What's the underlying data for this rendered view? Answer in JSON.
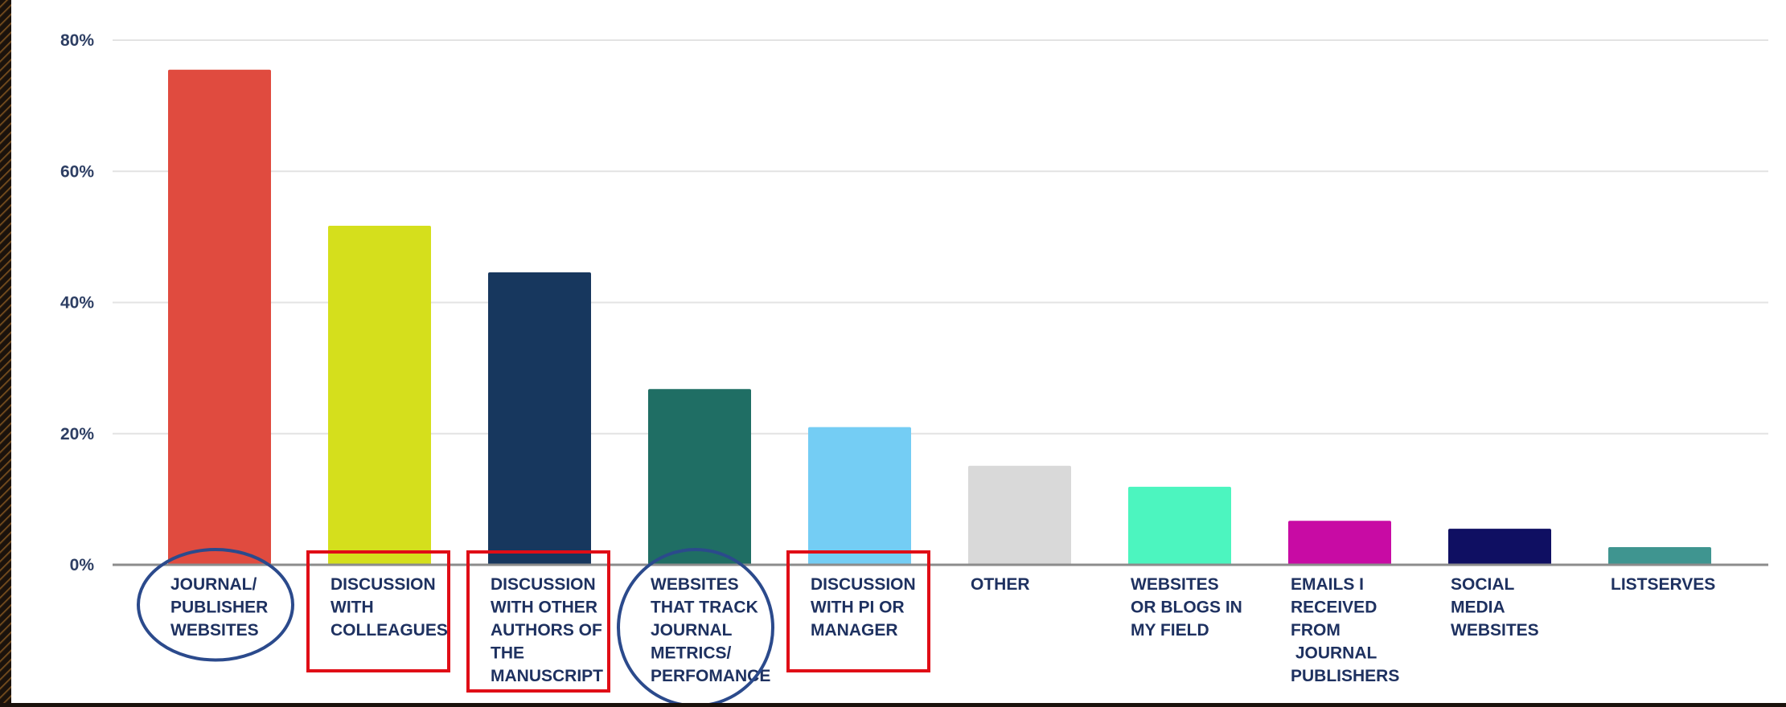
{
  "chart_data": {
    "type": "bar",
    "categories": [
      [
        "JOURNAL/",
        "PUBLISHER",
        "WEBSITES"
      ],
      [
        "DISCUSSION",
        "WITH",
        "COLLEAGUES"
      ],
      [
        "DISCUSSION",
        "WITH OTHER",
        "AUTHORS OF",
        "THE",
        "MANUSCRIPT"
      ],
      [
        "WEBSITES",
        "THAT TRACK",
        "JOURNAL",
        "METRICS/",
        "PERFOMANCE"
      ],
      [
        "DISCUSSION",
        "WITH PI OR",
        "MANAGER"
      ],
      [
        "OTHER"
      ],
      [
        "WEBSITES",
        "OR BLOGS IN",
        "MY FIELD"
      ],
      [
        "EMAILS I",
        "RECEIVED",
        "FROM",
        " JOURNAL",
        "PUBLISHERS"
      ],
      [
        "SOCIAL",
        "MEDIA",
        "WEBSITES"
      ],
      [
        "LISTSERVES"
      ]
    ],
    "values": [
      75.5,
      51.7,
      44.6,
      26.8,
      21.0,
      15.1,
      11.9,
      6.7,
      5.5,
      2.7
    ],
    "colors": [
      "#e04b3f",
      "#d5df1c",
      "#17375e",
      "#1f6e64",
      "#74cdf4",
      "#d9d9d9",
      "#4cf5bf",
      "#c80ba4",
      "#0f0f62",
      "#3f9590"
    ],
    "ylim": [
      0,
      80
    ],
    "yticks": [
      0,
      20,
      40,
      60,
      80
    ],
    "ytick_labels": [
      "0%",
      "20%",
      "40%",
      "60%",
      "80%"
    ],
    "grid": true,
    "title": "",
    "xlabel": "",
    "ylabel": "",
    "annotations": {
      "circled_categories": [
        0,
        3
      ],
      "boxed_categories": [
        1,
        2,
        4
      ],
      "circle_color": "#2b4a8c",
      "box_color": "#e00d16"
    }
  }
}
